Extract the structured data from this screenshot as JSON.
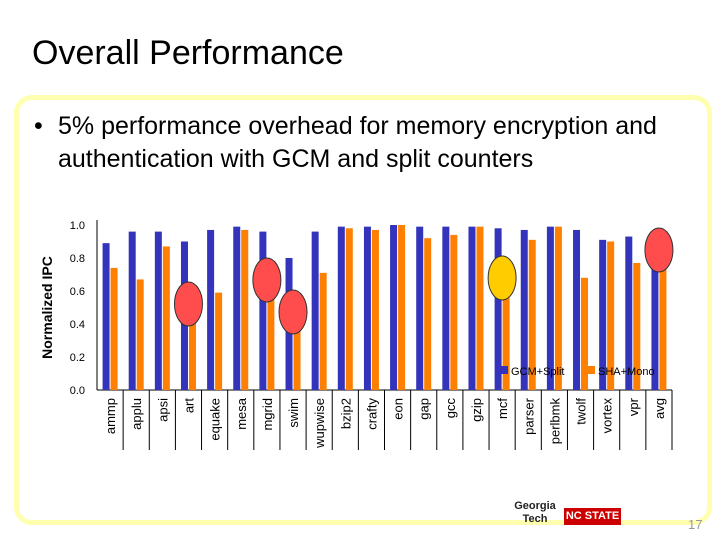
{
  "slide": {
    "title": "Overall Performance",
    "bullet_marker": "•",
    "bullet_text": "5% performance overhead for memory encryption and authentication with GCM and split counters",
    "page_number": "17",
    "logos": {
      "georgia_tech": "Georgia Tech",
      "nc_state": "NC STATE"
    }
  },
  "colors": {
    "gcm": "#3333bb",
    "sha": "#ff7f00",
    "red_marker": "#ff4c4c",
    "yellow_marker": "#ffcc00",
    "frame": "#ffffb0"
  },
  "chart_data": {
    "type": "bar",
    "ylabel": "Normalized IPC",
    "xlabel": "",
    "ylim": [
      0.0,
      1.0
    ],
    "yticks": [
      "0.0",
      "0.2",
      "0.4",
      "0.6",
      "0.8",
      "1.0"
    ],
    "categories": [
      "ammp",
      "applu",
      "apsi",
      "art",
      "equake",
      "mesa",
      "mgrid",
      "swim",
      "wupwise",
      "bzip2",
      "crafty",
      "eon",
      "gap",
      "gcc",
      "gzip",
      "mcf",
      "parser",
      "perlbmk",
      "twolf",
      "vortex",
      "vpr",
      "avg"
    ],
    "series": [
      {
        "name": "GCM+Split",
        "values": [
          0.89,
          0.96,
          0.96,
          0.9,
          0.97,
          0.99,
          0.96,
          0.8,
          0.96,
          0.99,
          0.99,
          1.0,
          0.99,
          0.99,
          0.99,
          0.98,
          0.97,
          0.99,
          0.97,
          0.91,
          0.93,
          0.95
        ]
      },
      {
        "name": "SHA+Mono",
        "values": [
          0.74,
          0.67,
          0.87,
          0.45,
          0.59,
          0.97,
          0.55,
          0.5,
          0.71,
          0.98,
          0.97,
          1.0,
          0.92,
          0.94,
          0.99,
          0.6,
          0.91,
          0.99,
          0.68,
          0.9,
          0.77,
          0.78
        ]
      }
    ],
    "highlighted": {
      "red": [
        "art",
        "mgrid",
        "swim",
        "avg"
      ],
      "yellow": [
        "mcf"
      ]
    },
    "legend_position": "bottom-right"
  }
}
